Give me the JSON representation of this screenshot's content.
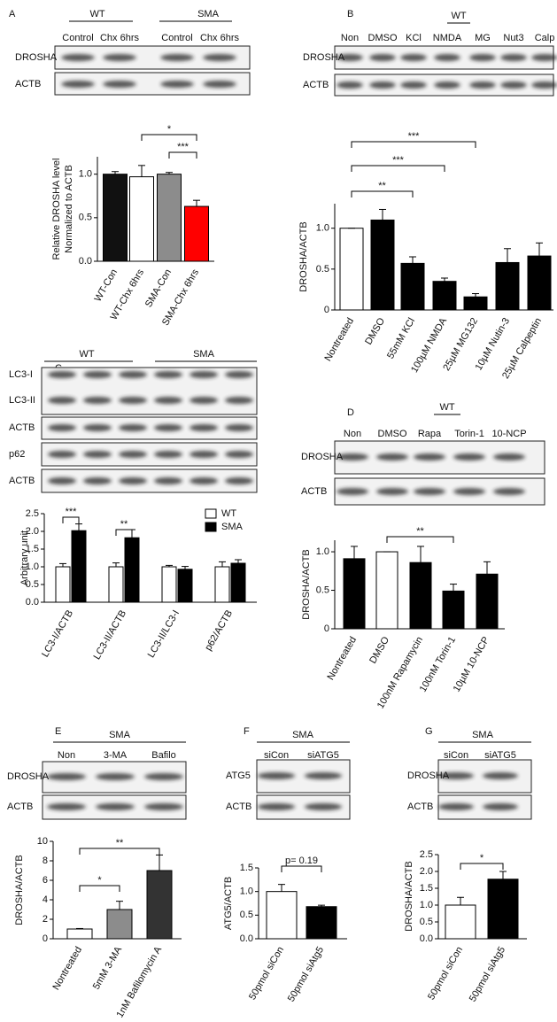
{
  "chart_data": [
    {
      "type": "bar",
      "panel": "A",
      "groups": [
        "WT",
        "SMA"
      ],
      "lanes": [
        "Control",
        "Chx 6hrs",
        "Control",
        "Chx 6hrs"
      ],
      "bands": [
        "DROSHA",
        "ACTB"
      ],
      "ylabel": [
        "Relative DROSHA level",
        "Normalized to ACTB"
      ],
      "categories": [
        "WT-Con",
        "WT-Chx 6hrs",
        "SMA-Con",
        "SMA-Chx 6hrs"
      ],
      "values": [
        1.0,
        0.97,
        1.0,
        0.63
      ],
      "errors": [
        0.03,
        0.13,
        0.02,
        0.07
      ],
      "colors": [
        "#111111",
        "#ffffff",
        "#8c8c8c",
        "#ff0000"
      ],
      "ylim": [
        0,
        1.2
      ],
      "yticks": [
        {
          "value": 0,
          "label": "0.0"
        },
        0.5,
        {
          "value": 1,
          "label": "1.0"
        }
      ],
      "annotations": [
        "*",
        "***"
      ]
    },
    {
      "type": "bar",
      "panel": "B",
      "groups": [
        "WT"
      ],
      "lanes": [
        "Non",
        "DMSO",
        "KCl",
        "NMDA",
        "MG",
        "Nut3",
        "Calp"
      ],
      "bands": [
        "DROSHA",
        "ACTB"
      ],
      "ylabel": [
        "DROSHA/ACTB"
      ],
      "categories": [
        "Nontreated",
        "DMSO",
        "55mM KCl",
        "100µM NMDA",
        "25µM MG132",
        "10µM Nutin-3",
        "25µM Calpeptin"
      ],
      "values": [
        1.0,
        1.1,
        0.57,
        0.35,
        0.16,
        0.58,
        0.66
      ],
      "errors": [
        0,
        0.13,
        0.08,
        0.04,
        0.04,
        0.17,
        0.16
      ],
      "colors": [
        "#ffffff",
        "#000000",
        "#000000",
        "#000000",
        "#000000",
        "#000000",
        "#000000"
      ],
      "ylim": [
        0,
        1.3
      ],
      "yticks": [
        0,
        0.5,
        {
          "value": 1,
          "label": "1.0"
        }
      ],
      "annotations": [
        "**",
        "***",
        "***"
      ]
    },
    {
      "type": "bar",
      "panel": "C",
      "groups": [
        "WT",
        "SMA"
      ],
      "bands": [
        "LC3-I",
        "LC3-II",
        "ACTB",
        "p62",
        "ACTB"
      ],
      "ylabel": [
        "Arbitrary unit"
      ],
      "categories": [
        "LC3-I/ACTB",
        "LC3-II/ACTB",
        "LC3-II/LC3-I",
        "p62/ACTB"
      ],
      "series": [
        {
          "name": "WT",
          "color": "#ffffff",
          "values": [
            1.0,
            1.0,
            1.0,
            1.0
          ],
          "errors": [
            0.09,
            0.11,
            0.04,
            0.14
          ]
        },
        {
          "name": "SMA",
          "color": "#000000",
          "values": [
            2.02,
            1.82,
            0.93,
            1.1
          ],
          "errors": [
            0.19,
            0.23,
            0.08,
            0.1
          ]
        }
      ],
      "legend": "top-right",
      "ylim": [
        0,
        2.5
      ],
      "yticks": [
        {
          "value": 0,
          "label": "0.0"
        },
        0.5,
        {
          "value": 1,
          "label": "1.0"
        },
        1.5,
        {
          "value": 2,
          "label": "2.0"
        },
        2.5
      ],
      "annotations": [
        "***",
        "**"
      ]
    },
    {
      "type": "bar",
      "panel": "D",
      "groups": [
        "WT"
      ],
      "lanes": [
        "Non",
        "DMSO",
        "Rapa",
        "Torin-1",
        "10-NCP"
      ],
      "bands": [
        "DROSHA",
        "ACTB"
      ],
      "ylabel": [
        "DROSHA/ACTB"
      ],
      "categories": [
        "Nontreated",
        "DMSO",
        "100nM Rapamycin",
        "100nM Torin-1",
        "10µM 10-NCP"
      ],
      "values": [
        0.91,
        1.0,
        0.86,
        0.49,
        0.71
      ],
      "errors": [
        0.16,
        0,
        0.21,
        0.09,
        0.16
      ],
      "colors": [
        "#000000",
        "#ffffff",
        "#000000",
        "#000000",
        "#000000"
      ],
      "ylim": [
        0,
        1.15
      ],
      "yticks": [
        0,
        0.5,
        {
          "value": 1,
          "label": "1.0"
        }
      ],
      "annotations": [
        "**"
      ]
    },
    {
      "type": "bar",
      "panel": "E",
      "groups": [
        "SMA"
      ],
      "lanes": [
        "Non",
        "3-MA",
        "Bafilo"
      ],
      "bands": [
        "DROSHA",
        "ACTB"
      ],
      "ylabel": [
        "DROSHA/ACTB"
      ],
      "categories": [
        "Nontreated",
        "5mM 3-MA",
        "1nM Bafilomycin A"
      ],
      "values": [
        1.0,
        3.0,
        7.0
      ],
      "errors": [
        0.05,
        0.85,
        1.6
      ],
      "colors": [
        "#ffffff",
        "#8c8c8c",
        "#333333"
      ],
      "ylim": [
        0,
        10
      ],
      "yticks": [
        0,
        2,
        4,
        6,
        8,
        10
      ],
      "annotations": [
        "*",
        "**"
      ]
    },
    {
      "type": "bar",
      "panel": "F",
      "groups": [
        "SMA"
      ],
      "lanes": [
        "siCon",
        "siATG5"
      ],
      "bands": [
        "ATG5",
        "ACTB"
      ],
      "ylabel": [
        "ATG5/ACTB"
      ],
      "categories": [
        "50pmol siCon",
        "50pmol siAtg5"
      ],
      "values": [
        1.0,
        0.68
      ],
      "errors": [
        0.15,
        0.03
      ],
      "colors": [
        "#ffffff",
        "#000000"
      ],
      "ylim": [
        0,
        1.5
      ],
      "yticks": [
        {
          "value": 0,
          "label": "0.0"
        },
        0.5,
        {
          "value": 1,
          "label": "1.0"
        },
        1.5
      ],
      "annotations": [
        "p= 0.19"
      ]
    },
    {
      "type": "bar",
      "panel": "G",
      "groups": [
        "SMA"
      ],
      "lanes": [
        "siCon",
        "siATG5"
      ],
      "bands": [
        "DROSHA",
        "ACTB"
      ],
      "ylabel": [
        "DROSHA/ACTB"
      ],
      "categories": [
        "50pmol siCon",
        "50pmol siAtg5"
      ],
      "values": [
        1.0,
        1.77
      ],
      "errors": [
        0.23,
        0.23
      ],
      "colors": [
        "#ffffff",
        "#000000"
      ],
      "ylim": [
        0,
        2.5
      ],
      "yticks": [
        {
          "value": 0,
          "label": "0.0"
        },
        0.5,
        {
          "value": 1,
          "label": "1.0"
        },
        1.5,
        {
          "value": 2,
          "label": "2.0"
        },
        2.5
      ],
      "annotations": [
        "*"
      ]
    }
  ]
}
